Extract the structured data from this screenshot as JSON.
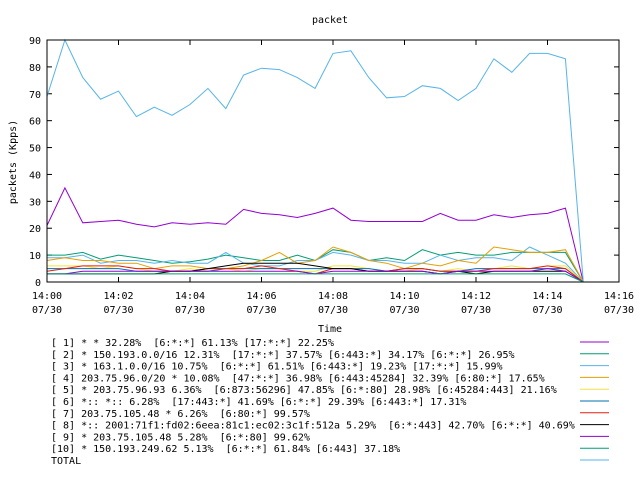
{
  "chart_data": {
    "type": "line",
    "title": "packet",
    "xlabel": "Time",
    "ylabel": "packets (Kpps)",
    "ylim": [
      0,
      90
    ],
    "yticks": [
      0,
      10,
      20,
      30,
      40,
      50,
      60,
      70,
      80,
      90
    ],
    "xlim": [
      "14:00",
      "14:16"
    ],
    "xtick_labels": [
      {
        "time": "14:00",
        "date": "07/30"
      },
      {
        "time": "14:02",
        "date": "07/30"
      },
      {
        "time": "14:04",
        "date": "07/30"
      },
      {
        "time": "14:06",
        "date": "07/30"
      },
      {
        "time": "14:08",
        "date": "07/30"
      },
      {
        "time": "14:10",
        "date": "07/30"
      },
      {
        "time": "14:12",
        "date": "07/30"
      },
      {
        "time": "14:14",
        "date": "07/30"
      },
      {
        "time": "14:16",
        "date": "07/30"
      }
    ],
    "x": [
      "14:00",
      "14:00:30",
      "14:01",
      "14:01:30",
      "14:02",
      "14:02:30",
      "14:03",
      "14:03:30",
      "14:04",
      "14:04:30",
      "14:05",
      "14:05:30",
      "14:06",
      "14:06:30",
      "14:07",
      "14:07:30",
      "14:08",
      "14:08:30",
      "14:09",
      "14:09:30",
      "14:10",
      "14:10:30",
      "14:11",
      "14:11:30",
      "14:12",
      "14:12:30",
      "14:13",
      "14:13:30",
      "14:14",
      "14:14:30",
      "14:15"
    ],
    "grid": false,
    "legend_position": "bottom",
    "series": [
      {
        "name": "[ 1] * * 32.28%  [6:*:*] 61.13% [17:*:*] 22.25%",
        "color": "#9400d3",
        "values": [
          21,
          35,
          22,
          22.5,
          23,
          21.5,
          20.5,
          22,
          21.5,
          22,
          21.5,
          27,
          25.5,
          25,
          24,
          25.5,
          27.5,
          23,
          22.5,
          22.5,
          22.5,
          22.5,
          25.5,
          23,
          23,
          25,
          24,
          25,
          25.5,
          27.5,
          0
        ]
      },
      {
        "name": "[ 2] * 150.193.0.0/16 12.31%  [17:*:*] 37.57% [6:443:*] 34.17% [6:*:*] 26.95%",
        "color": "#009e73",
        "values": [
          10,
          10,
          11,
          8.5,
          10,
          9,
          8,
          7,
          7.5,
          8.5,
          10,
          9,
          8,
          8,
          10,
          8,
          12,
          11,
          8,
          9,
          8,
          12,
          10,
          11,
          10,
          10,
          11,
          11,
          11,
          11,
          0
        ]
      },
      {
        "name": "[ 3] * 163.1.0.0/16 10.75%  [6:*:*] 61.51% [6:443:*] 19.23% [17:*:*] 15.99%",
        "color": "#56b4e9",
        "values": [
          9,
          9,
          10,
          7,
          8,
          8,
          7,
          8,
          7,
          7,
          11,
          7,
          6,
          6,
          8,
          8,
          11,
          10,
          8,
          8,
          7,
          7,
          10,
          8,
          9,
          9,
          8,
          13,
          10,
          7,
          0
        ]
      },
      {
        "name": "[ 4] 203.75.96.0/20 * 10.08%  [47:*:*] 36.98% [6:443:45284] 32.39% [6:80:*] 17.65%",
        "color": "#e69f00",
        "values": [
          8,
          9,
          8,
          8,
          7,
          7,
          5,
          6,
          6,
          5,
          5,
          6,
          8,
          11,
          7,
          8,
          13,
          11,
          8,
          7,
          5,
          7,
          6,
          8,
          7,
          13,
          12,
          11,
          11,
          12,
          0
        ]
      },
      {
        "name": "[ 5] * 203.75.96.93 6.36%  [6:873:56296] 47.85% [6:*:80] 28.98% [6:45284:443] 21.16%",
        "color": "#f0e442",
        "values": [
          6,
          6,
          6,
          5,
          6,
          5,
          4,
          4,
          5,
          4,
          5,
          4,
          5,
          5,
          4,
          4,
          6,
          6,
          5,
          4,
          4,
          5,
          4,
          5,
          4,
          5,
          6,
          5,
          6,
          6,
          0
        ]
      },
      {
        "name": "[ 6] *:: *:: 6.28%  [17:443:*] 41.69% [6:*:*] 29.39% [6:443:*] 17.31%",
        "color": "#0072b2",
        "values": [
          5,
          5,
          5,
          5,
          5,
          4,
          4,
          4,
          4,
          4,
          5,
          5,
          5,
          5,
          5,
          5,
          5,
          5,
          5,
          4,
          5,
          5,
          4,
          4,
          5,
          5,
          5,
          5,
          5,
          5,
          0
        ]
      },
      {
        "name": "[ 7] 203.75.105.48 * 6.26%  [6:80:*] 99.57%",
        "color": "#e51e10",
        "values": [
          4,
          5,
          6,
          6,
          6,
          5,
          5,
          4,
          4,
          5,
          5,
          5,
          6,
          5,
          4,
          3,
          5,
          5,
          4,
          4,
          5,
          5,
          4,
          4,
          4,
          5,
          5,
          5,
          6,
          5,
          0
        ]
      },
      {
        "name": "[ 8] *:: 2001:71f1:fd02:6eea:81c1:ec02:3c1f:512a 5.29%  [6:*:443] 42.70% [6:*:*] 40.69%",
        "color": "#000000",
        "values": [
          3,
          3,
          3,
          3,
          3,
          3,
          3,
          4,
          4,
          5,
          6,
          7,
          7,
          7,
          7,
          6,
          5,
          5,
          4,
          4,
          4,
          4,
          3,
          4,
          3,
          4,
          4,
          4,
          4,
          4,
          0
        ]
      },
      {
        "name": "[ 9] * 203.75.105.48 5.28%  [6:*:80] 99.62%",
        "color": "#9400d3",
        "values": [
          3,
          3,
          4,
          4,
          4,
          4,
          4,
          4,
          4,
          4,
          4,
          4,
          4,
          4,
          4,
          3,
          4,
          4,
          4,
          4,
          4,
          4,
          3,
          4,
          4,
          4,
          4,
          4,
          5,
          4,
          0
        ]
      },
      {
        "name": "[10] * 150.193.249.62 5.13%  [6:*:*] 61.84% [6:443] 37.18%",
        "color": "#009e73",
        "values": [
          3,
          3,
          3,
          3,
          3,
          3,
          3,
          3,
          3,
          3,
          3,
          3,
          3,
          3,
          3,
          3,
          3,
          3,
          3,
          3,
          3,
          3,
          3,
          3,
          3,
          3,
          3,
          3,
          3,
          3,
          0
        ]
      },
      {
        "name": "TOTAL",
        "color": "#56b4e9",
        "values": [
          69,
          90,
          76,
          68,
          71,
          61.5,
          65,
          62,
          66,
          72,
          64.5,
          77,
          79.5,
          79,
          76,
          72,
          85,
          86,
          76,
          68.5,
          69,
          73,
          72,
          67.5,
          72,
          83,
          78,
          85,
          85,
          83,
          0
        ]
      }
    ]
  }
}
